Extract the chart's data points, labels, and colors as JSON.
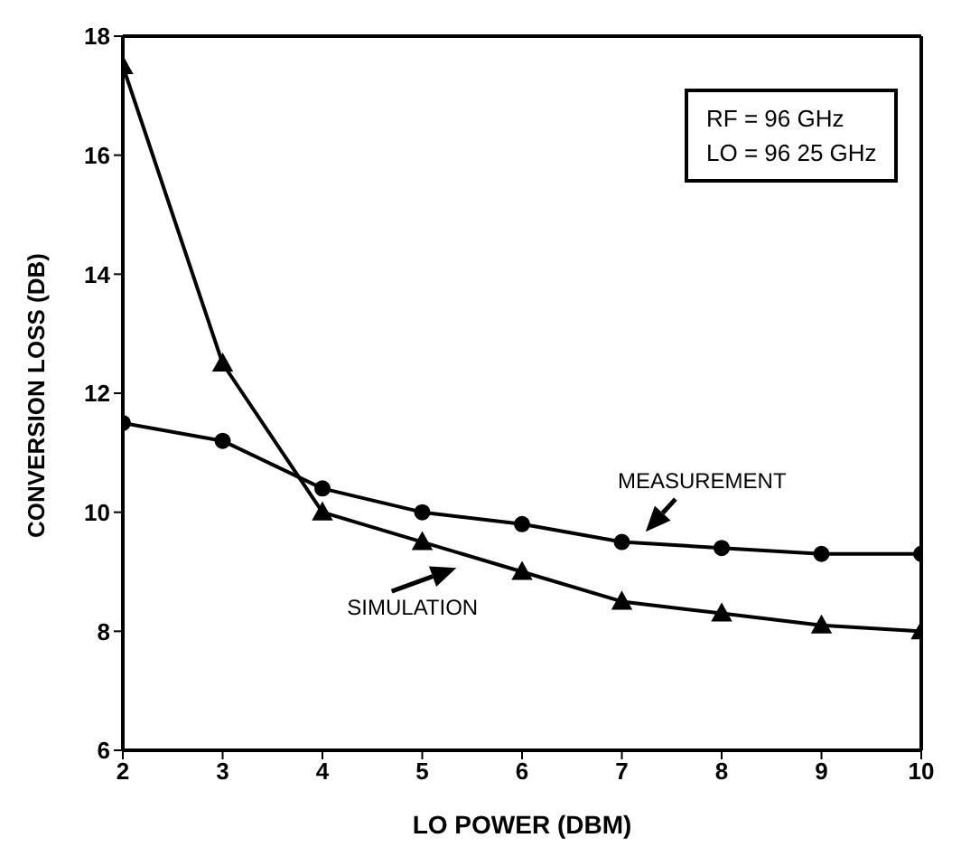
{
  "chart_data": {
    "type": "line",
    "xlabel": "LO POWER (DBM)",
    "ylabel": "CONVERSION LOSS (DB)",
    "x": [
      2,
      3,
      4,
      5,
      6,
      7,
      8,
      9,
      10
    ],
    "series": [
      {
        "name": "MEASUREMENT",
        "color": "#000000",
        "marker": "circle",
        "values": [
          11.5,
          11.2,
          10.4,
          10.0,
          9.8,
          9.5,
          9.4,
          9.3,
          9.3
        ]
      },
      {
        "name": "SIMULATION",
        "color": "#000000",
        "marker": "triangle",
        "values": [
          17.5,
          12.5,
          10.0,
          9.5,
          9.0,
          8.5,
          8.3,
          8.1,
          8.0
        ]
      }
    ],
    "xlim": [
      2,
      10
    ],
    "xticks": [
      2,
      3,
      4,
      5,
      6,
      7,
      8,
      9,
      10
    ],
    "ylim": [
      6,
      18
    ],
    "yticks": [
      6,
      8,
      10,
      12,
      14,
      16,
      18
    ],
    "line_style": "solid",
    "annotations": [
      "RF = 96 GHz",
      "LO = 96 25 GHz"
    ]
  }
}
